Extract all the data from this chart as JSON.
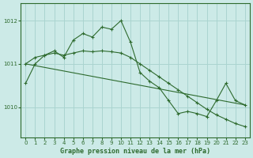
{
  "title": "Graphe pression niveau de la mer (hPa)",
  "bg_color": "#cceae7",
  "grid_color": "#aad4d0",
  "line_color": "#2d6a2d",
  "xlim": [
    -0.5,
    23.5
  ],
  "ylim": [
    1009.3,
    1012.4
  ],
  "yticks": [
    1010,
    1011,
    1012
  ],
  "xticks": [
    0,
    1,
    2,
    3,
    4,
    5,
    6,
    7,
    8,
    9,
    10,
    11,
    12,
    13,
    14,
    15,
    16,
    17,
    18,
    19,
    20,
    21,
    22,
    23
  ],
  "series1_x": [
    0,
    1,
    2,
    3,
    4,
    5,
    6,
    7,
    8,
    9,
    10,
    11,
    12,
    13,
    14,
    15,
    16,
    17,
    18,
    19,
    20,
    21,
    22,
    23
  ],
  "series1_y": [
    1010.55,
    1011.0,
    1011.2,
    1011.3,
    1011.15,
    1011.55,
    1011.7,
    1011.62,
    1011.85,
    1011.8,
    1012.0,
    1011.5,
    1010.8,
    1010.6,
    1010.45,
    1010.15,
    1009.85,
    1009.9,
    1009.85,
    1009.78,
    1010.15,
    1010.55,
    1010.15,
    1010.05
  ],
  "series2_x": [
    0,
    1,
    2,
    3,
    4,
    5,
    6,
    7,
    8,
    9,
    10,
    11,
    12,
    13,
    14,
    15,
    16,
    17,
    18,
    19,
    20,
    21,
    22,
    23
  ],
  "series2_y": [
    1011.0,
    1011.15,
    1011.2,
    1011.25,
    1011.2,
    1011.25,
    1011.3,
    1011.28,
    1011.3,
    1011.28,
    1011.25,
    1011.15,
    1011.0,
    1010.85,
    1010.7,
    1010.55,
    1010.4,
    1010.25,
    1010.1,
    1009.95,
    1009.82,
    1009.72,
    1009.62,
    1009.55
  ],
  "series3_x": [
    0,
    23
  ],
  "series3_y": [
    1011.0,
    1010.05
  ]
}
